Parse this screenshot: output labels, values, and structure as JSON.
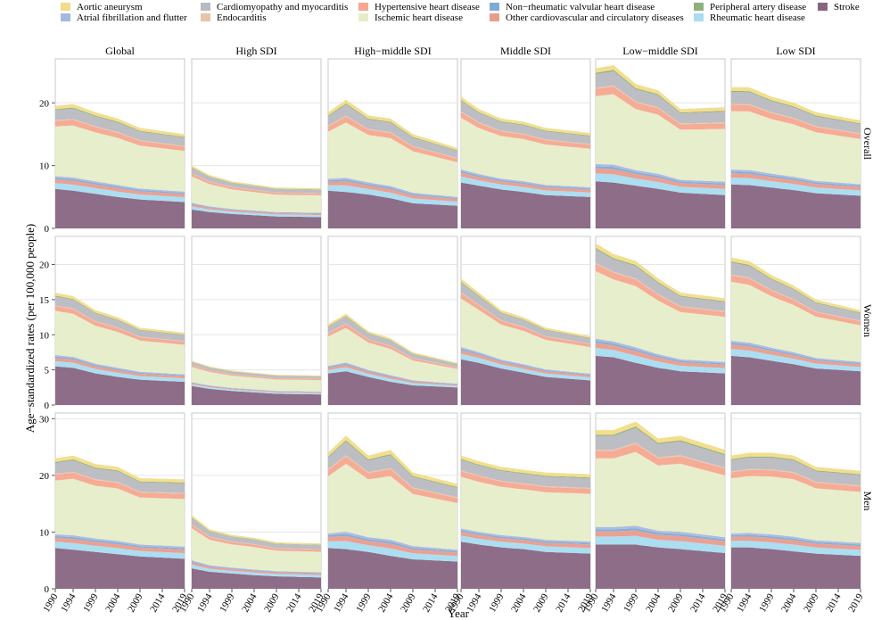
{
  "chart_data": {
    "type": "area",
    "stacked": true,
    "title": "",
    "xlabel": "Year",
    "ylabel": "Age−standardized rates (per 100,000 people)",
    "x_ticks": [
      1990,
      1994,
      1999,
      2004,
      2009,
      2014,
      2019
    ],
    "x_range": [
      1990,
      2019
    ],
    "columns": [
      "Global",
      "High SDI",
      "High−middle SDI",
      "Middle SDI",
      "Low−middle SDI",
      "Low SDI"
    ],
    "rows": [
      "Overall",
      "Women",
      "Men"
    ],
    "row_ylim": [
      [
        0,
        27
      ],
      [
        0,
        24
      ],
      [
        0,
        31
      ]
    ],
    "row_yticks": [
      [
        0,
        10,
        20
      ],
      [
        0,
        5,
        10,
        15,
        20
      ],
      [
        0,
        10,
        20,
        30
      ]
    ],
    "legend_position": "top",
    "series": [
      {
        "name": "Aortic aneurysm",
        "color": "#f2dc88"
      },
      {
        "name": "Atrial fibrillation and flutter",
        "color": "#a7b8e0"
      },
      {
        "name": "Cardiomyopathy and myocarditis",
        "color": "#b9b9c1"
      },
      {
        "name": "Endocarditis",
        "color": "#e7c4aa"
      },
      {
        "name": "Hypertensive heart disease",
        "color": "#f5a78f"
      },
      {
        "name": "Ischemic heart disease",
        "color": "#e6edc8"
      },
      {
        "name": "Non−rheumatic valvular heart disease",
        "color": "#7eaad6"
      },
      {
        "name": "Other cardiovascular and circulatory diseases",
        "color": "#e99c8c"
      },
      {
        "name": "Peripheral artery disease",
        "color": "#8fb07c"
      },
      {
        "name": "Rheumatic heart disease",
        "color": "#a8dcf1"
      },
      {
        "name": "Stroke",
        "color": "#876582"
      }
    ],
    "stack_order": [
      "Stroke",
      "Rheumatic heart disease",
      "Other cardiovascular and circulatory diseases",
      "Non−rheumatic valvular heart disease",
      "Atrial fibrillation and flutter",
      "Ischemic heart disease",
      "Hypertensive heart disease",
      "Endocarditis",
      "Cardiomyopathy and myocarditis",
      "Peripheral artery disease",
      "Aortic aneurysm"
    ],
    "approx_stack_values": [
      {
        "row": "Overall",
        "column": "Global",
        "total": [
          19.5,
          19.8,
          18.5,
          17.5,
          16.0,
          15.0
        ],
        "stroke": [
          6.3,
          6.0,
          5.5,
          5.0,
          4.6,
          4.2
        ]
      },
      {
        "row": "Overall",
        "column": "High SDI",
        "total": [
          10.0,
          8.5,
          7.5,
          7.0,
          6.5,
          6.4
        ],
        "stroke": [
          3.0,
          2.6,
          2.3,
          2.1,
          1.9,
          1.8
        ]
      },
      {
        "row": "Overall",
        "column": "High−middle SDI",
        "total": [
          18.5,
          20.5,
          18.0,
          17.5,
          15.0,
          12.8
        ],
        "stroke": [
          6.0,
          5.8,
          5.4,
          4.8,
          4.0,
          3.6
        ]
      },
      {
        "row": "Overall",
        "column": "Middle SDI",
        "total": [
          21.0,
          19.0,
          17.5,
          17.0,
          16.0,
          15.2
        ],
        "stroke": [
          7.3,
          6.8,
          6.2,
          5.8,
          5.3,
          5.0
        ]
      },
      {
        "row": "Overall",
        "column": "Low−middle SDI",
        "total": [
          25.5,
          26.0,
          23.0,
          22.0,
          19.0,
          19.3
        ],
        "stroke": [
          7.5,
          7.3,
          6.8,
          6.3,
          5.7,
          5.3
        ]
      },
      {
        "row": "Overall",
        "column": "Low SDI",
        "total": [
          22.5,
          22.5,
          21.0,
          20.0,
          18.5,
          17.2
        ],
        "stroke": [
          7.0,
          6.9,
          6.5,
          6.1,
          5.6,
          5.2
        ]
      },
      {
        "row": "Women",
        "column": "Global",
        "total": [
          16.0,
          15.5,
          13.5,
          12.5,
          11.0,
          10.3
        ],
        "stroke": [
          5.5,
          5.3,
          4.5,
          4.0,
          3.6,
          3.3
        ]
      },
      {
        "row": "Women",
        "column": "High SDI",
        "total": [
          6.3,
          5.5,
          4.9,
          4.6,
          4.3,
          4.2
        ],
        "stroke": [
          2.7,
          2.3,
          2.0,
          1.8,
          1.6,
          1.5
        ]
      },
      {
        "row": "Women",
        "column": "High−middle SDI",
        "total": [
          11.5,
          13.0,
          10.5,
          9.5,
          7.5,
          6.0
        ],
        "stroke": [
          4.5,
          4.8,
          4.0,
          3.3,
          2.8,
          2.5
        ]
      },
      {
        "row": "Women",
        "column": "Middle SDI",
        "total": [
          18.0,
          16.0,
          13.5,
          12.5,
          11.0,
          9.8
        ],
        "stroke": [
          6.5,
          6.0,
          5.2,
          4.6,
          4.0,
          3.5
        ]
      },
      {
        "row": "Women",
        "column": "Low−middle SDI",
        "total": [
          23.0,
          21.5,
          20.5,
          18.0,
          16.0,
          15.2
        ],
        "stroke": [
          7.0,
          6.8,
          6.0,
          5.3,
          4.8,
          4.5
        ]
      },
      {
        "row": "Women",
        "column": "Low SDI",
        "total": [
          21.0,
          20.5,
          18.5,
          17.0,
          15.0,
          13.5
        ],
        "stroke": [
          7.0,
          6.8,
          6.3,
          5.8,
          5.2,
          4.8
        ]
      },
      {
        "row": "Men",
        "column": "Global",
        "total": [
          23.0,
          23.5,
          22.0,
          21.5,
          19.5,
          19.3
        ],
        "stroke": [
          7.2,
          6.9,
          6.5,
          6.1,
          5.7,
          5.3
        ]
      },
      {
        "row": "Men",
        "column": "High SDI",
        "total": [
          13.0,
          10.5,
          9.5,
          9.0,
          8.2,
          8.0
        ],
        "stroke": [
          3.6,
          3.0,
          2.7,
          2.4,
          2.2,
          2.0
        ]
      },
      {
        "row": "Men",
        "column": "High−middle SDI",
        "total": [
          24.0,
          27.0,
          23.5,
          24.5,
          20.5,
          18.5
        ],
        "stroke": [
          7.2,
          7.0,
          6.5,
          5.8,
          5.2,
          4.8
        ]
      },
      {
        "row": "Men",
        "column": "Middle SDI",
        "total": [
          23.5,
          22.5,
          21.5,
          21.0,
          20.5,
          20.2
        ],
        "stroke": [
          8.3,
          7.8,
          7.3,
          7.0,
          6.5,
          6.2
        ]
      },
      {
        "row": "Men",
        "column": "Low−middle SDI",
        "total": [
          28.0,
          28.0,
          29.5,
          26.5,
          27.0,
          24.5
        ],
        "stroke": [
          7.8,
          7.8,
          7.8,
          7.3,
          7.0,
          6.3
        ]
      },
      {
        "row": "Men",
        "column": "Low SDI",
        "total": [
          23.5,
          24.0,
          24.0,
          23.5,
          21.5,
          20.8
        ],
        "stroke": [
          7.3,
          7.3,
          7.0,
          6.6,
          6.2,
          5.8
        ]
      }
    ],
    "approx_stack_years": [
      1990,
      1994,
      1999,
      2004,
      2009,
      2019
    ]
  }
}
